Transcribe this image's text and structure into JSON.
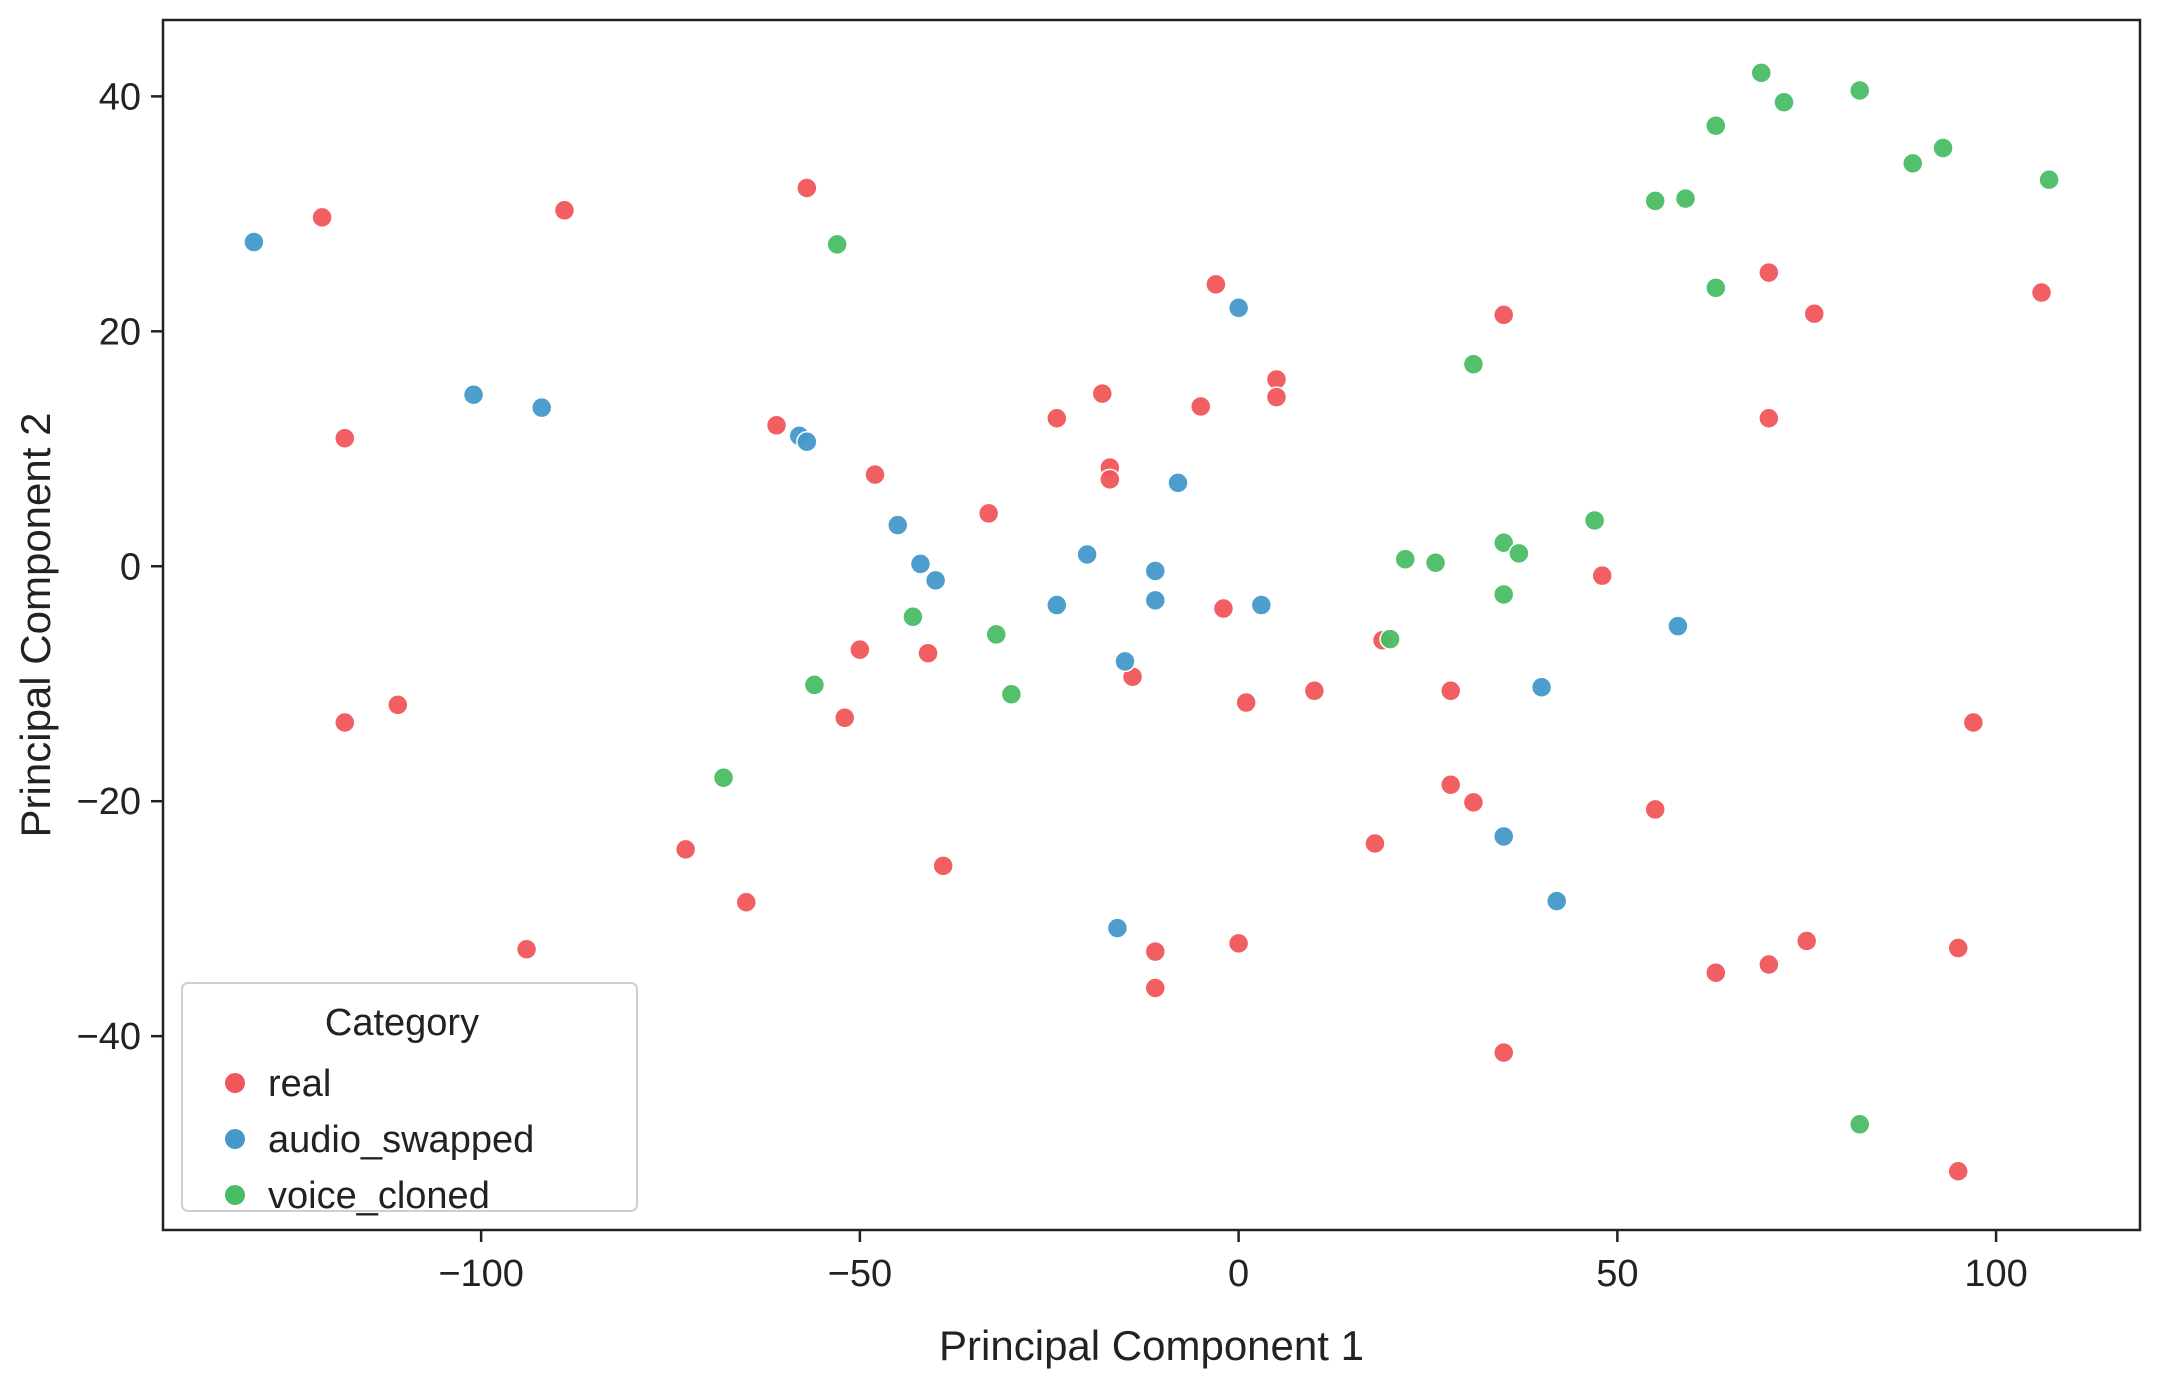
{
  "chart_data": {
    "type": "scatter",
    "title": "",
    "xlabel": "Principal Component 1",
    "ylabel": "Principal Component 2",
    "xlim": [
      -142,
      119
    ],
    "ylim": [
      -56.5,
      46.5
    ],
    "xticks": [
      -100,
      -50,
      0,
      50,
      100
    ],
    "yticks": [
      -40,
      -20,
      0,
      20,
      40
    ],
    "grid": false,
    "legend": {
      "title": "Category",
      "position": "lower-left"
    },
    "series": [
      {
        "name": "real",
        "color": "#f0565a",
        "points": [
          [
            -121,
            29.7
          ],
          [
            -89,
            30.3
          ],
          [
            -57,
            32.2
          ],
          [
            -118,
            10.9
          ],
          [
            -61,
            12.0
          ],
          [
            -48,
            7.8
          ],
          [
            -24,
            12.6
          ],
          [
            -18,
            14.7
          ],
          [
            -17,
            8.4
          ],
          [
            -17,
            7.4
          ],
          [
            -5,
            13.6
          ],
          [
            -3,
            24.0
          ],
          [
            5,
            15.9
          ],
          [
            5,
            14.4
          ],
          [
            -33,
            4.5
          ],
          [
            -50,
            -7.1
          ],
          [
            -41,
            -7.4
          ],
          [
            -52,
            -12.9
          ],
          [
            -118,
            -13.3
          ],
          [
            -111,
            -11.8
          ],
          [
            -14,
            -9.4
          ],
          [
            -2,
            -3.6
          ],
          [
            1,
            -11.6
          ],
          [
            10,
            -10.6
          ],
          [
            19,
            -6.3
          ],
          [
            28,
            -10.6
          ],
          [
            48,
            -0.8
          ],
          [
            35,
            21.4
          ],
          [
            70,
            25.0
          ],
          [
            76,
            21.5
          ],
          [
            70,
            12.6
          ],
          [
            106,
            23.3
          ],
          [
            97,
            -13.3
          ],
          [
            -73,
            -24.1
          ],
          [
            -65,
            -28.6
          ],
          [
            -39,
            -25.5
          ],
          [
            -94,
            -32.6
          ],
          [
            -11,
            -32.8
          ],
          [
            -11,
            -35.9
          ],
          [
            0,
            -32.1
          ],
          [
            18,
            -23.6
          ],
          [
            28,
            -18.6
          ],
          [
            31,
            -20.1
          ],
          [
            55,
            -20.7
          ],
          [
            63,
            -34.6
          ],
          [
            70,
            -33.9
          ],
          [
            75,
            -31.9
          ],
          [
            95,
            -32.5
          ],
          [
            35,
            -41.4
          ],
          [
            95,
            -51.5
          ]
        ]
      },
      {
        "name": "audio_swapped",
        "color": "#4599ca",
        "points": [
          [
            -130,
            27.6
          ],
          [
            -101,
            14.6
          ],
          [
            -92,
            13.5
          ],
          [
            -58,
            11.1
          ],
          [
            -57,
            10.6
          ],
          [
            0,
            22.0
          ],
          [
            -45,
            3.5
          ],
          [
            -42,
            0.2
          ],
          [
            -40,
            -1.2
          ],
          [
            -20,
            1.0
          ],
          [
            -8,
            7.1
          ],
          [
            -11,
            -0.4
          ],
          [
            -11,
            -2.9
          ],
          [
            -24,
            -3.3
          ],
          [
            -15,
            -8.1
          ],
          [
            3,
            -3.3
          ],
          [
            58,
            -5.1
          ],
          [
            40,
            -10.3
          ],
          [
            35,
            -23.0
          ],
          [
            42,
            -28.5
          ],
          [
            -16,
            -30.8
          ]
        ]
      },
      {
        "name": "voice_cloned",
        "color": "#49bd64",
        "points": [
          [
            -53,
            27.4
          ],
          [
            69,
            42.0
          ],
          [
            72,
            39.5
          ],
          [
            63,
            37.5
          ],
          [
            82,
            40.5
          ],
          [
            93,
            35.6
          ],
          [
            89,
            34.3
          ],
          [
            107,
            32.9
          ],
          [
            55,
            31.1
          ],
          [
            59,
            31.3
          ],
          [
            63,
            23.7
          ],
          [
            31,
            17.2
          ],
          [
            47,
            3.9
          ],
          [
            35,
            2.0
          ],
          [
            37,
            1.1
          ],
          [
            22,
            0.6
          ],
          [
            26,
            0.3
          ],
          [
            35,
            -2.4
          ],
          [
            -43,
            -4.3
          ],
          [
            -32,
            -5.8
          ],
          [
            -56,
            -10.1
          ],
          [
            -30,
            -10.9
          ],
          [
            20,
            -6.2
          ],
          [
            -68,
            -18.0
          ],
          [
            82,
            -47.5
          ]
        ]
      }
    ]
  }
}
